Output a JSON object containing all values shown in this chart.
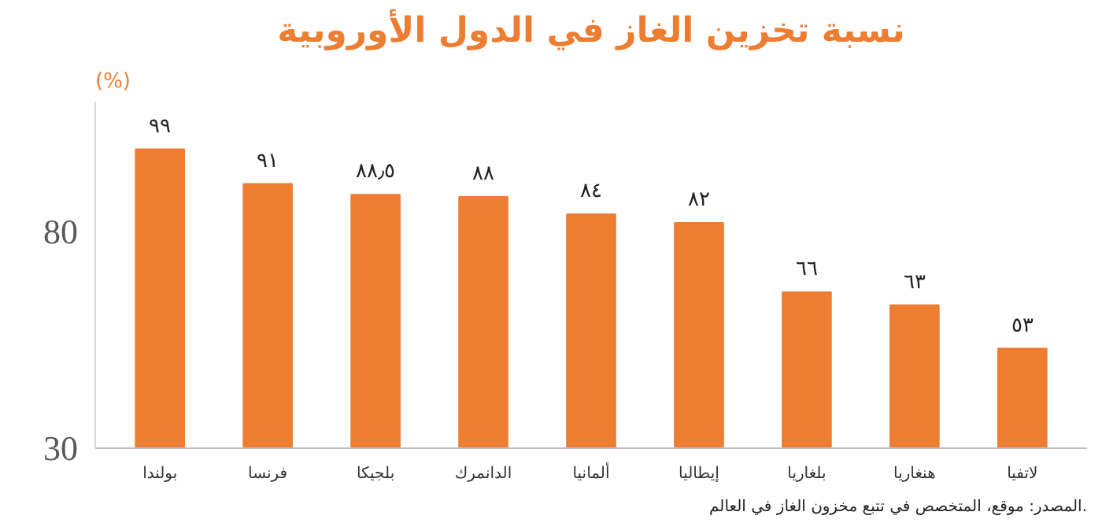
{
  "chart_data": {
    "type": "bar",
    "title": "نسبة تخزين الغاز في الدول الأوروبية",
    "ylabel": "(%)",
    "categories": [
      "بولندا",
      "فرنسا",
      "بلجيكا",
      "الدانمرك",
      "ألمانيا",
      "إيطاليا",
      "بلغاريا",
      "هنغاريا",
      "لاتفيا"
    ],
    "values": [
      99,
      91,
      88.5,
      88,
      84,
      82,
      66,
      63,
      53
    ],
    "value_labels": [
      "٩٩",
      "٩١",
      "٨٨٫٥",
      "٨٨",
      "٨٤",
      "٨٢",
      "٦٦",
      "٦٣",
      "٥٣"
    ],
    "color": "#ed7d31",
    "ylim": [
      30,
      110
    ],
    "yticks": [
      30,
      80
    ],
    "grid": false,
    "annotations": [
      "المصدر: موقع، المتخصص في تتبع مخزون الغاز في العالم."
    ]
  }
}
